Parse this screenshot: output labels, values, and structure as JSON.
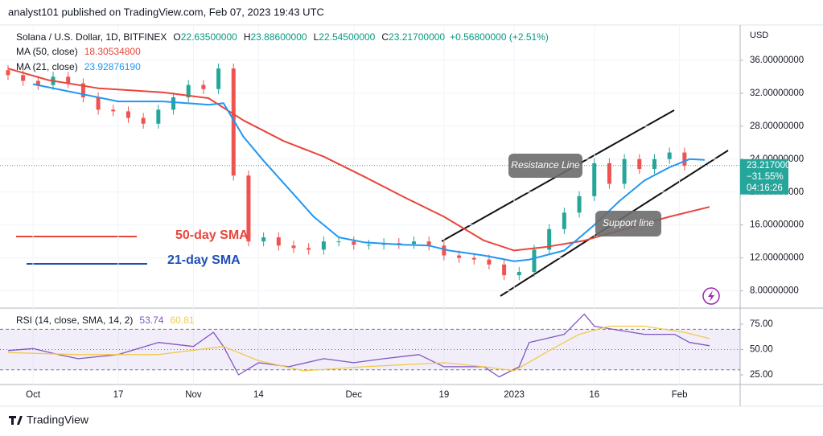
{
  "header": {
    "published": "analyst101 published on TradingView.com, Feb 07, 2023 19:43 UTC"
  },
  "chart_data": {
    "type": "candlestick",
    "symbol": "Solana / U.S. Dollar, 1D, BITFINEX",
    "ohlc": [
      {
        "key": "O",
        "text": "22.63500000"
      },
      {
        "key": "H",
        "text": "23.88600000"
      },
      {
        "key": "L",
        "text": "22.54500000"
      },
      {
        "key": "C",
        "text": "23.21700000"
      }
    ],
    "change": "+0.56800000 (+2.51%)",
    "currency": "USD",
    "x": [
      0,
      3,
      6,
      9,
      12,
      15,
      18,
      21,
      24,
      27,
      30,
      33,
      36,
      39,
      42,
      45,
      48,
      51,
      54,
      57,
      60,
      63,
      66,
      69,
      72,
      75,
      78,
      81,
      84,
      87,
      90,
      93,
      96,
      99,
      102,
      105,
      108,
      111,
      114,
      117,
      120,
      123,
      126,
      129,
      132,
      135
    ],
    "open": [
      34.8,
      34.2,
      33.5,
      33,
      34,
      33.2,
      31.5,
      30,
      29.8,
      29,
      28.3,
      30,
      31.5,
      33,
      32.5,
      35,
      22,
      14,
      14.5,
      13.5,
      13.2,
      13,
      14,
      14,
      13.6,
      13.6,
      13.8,
      13.7,
      14,
      13.5,
      12.3,
      12,
      11.8,
      11.2,
      9.9,
      10.3,
      13,
      15.5,
      17.5,
      19.5,
      23.5,
      21,
      24,
      22.8,
      24,
      24.8
    ],
    "high": [
      35.4,
      34.8,
      34.1,
      34.6,
      34.6,
      33.8,
      32.1,
      30.6,
      30.4,
      29.6,
      30.6,
      32.1,
      33.6,
      33.6,
      35.6,
      35.6,
      22.6,
      15.1,
      15.1,
      14.1,
      13.8,
      14.6,
      14.6,
      14.6,
      14.2,
      14.4,
      14.4,
      14.6,
      14.6,
      14.1,
      12.9,
      12.6,
      12.4,
      11.8,
      10.9,
      13.6,
      16.1,
      18.1,
      20.1,
      24.1,
      24.1,
      24.6,
      24.6,
      24.6,
      25.4,
      25.4
    ],
    "low": [
      33.6,
      32.9,
      32.4,
      32.4,
      32.6,
      30.9,
      29.4,
      29.2,
      28.4,
      27.7,
      27.7,
      29.4,
      30.9,
      31.9,
      31.9,
      21.4,
      13.4,
      13.4,
      12.9,
      12.6,
      12.4,
      12.4,
      13.4,
      13,
      13,
      13,
      13.1,
      13.1,
      12.9,
      11.7,
      11.4,
      11.2,
      10.6,
      9.3,
      9.3,
      9.7,
      12.4,
      14.9,
      16.9,
      18.9,
      20.4,
      20.4,
      22.2,
      22.2,
      23.4,
      22.6
    ],
    "close": [
      34.2,
      33.5,
      33,
      34,
      33.2,
      31.5,
      30,
      29.8,
      29,
      28.3,
      30,
      31.5,
      33,
      32.5,
      35,
      22,
      14,
      14.5,
      13.5,
      13.2,
      13,
      14,
      14,
      13.6,
      13.6,
      13.8,
      13.7,
      14,
      13.5,
      12.3,
      12,
      11.8,
      11.2,
      9.9,
      10.3,
      13,
      15.5,
      17.5,
      19.5,
      23.5,
      21,
      24,
      22.8,
      24,
      24.8,
      23.2
    ],
    "up_color": "#26a69a",
    "down_color": "#ef5350",
    "series": [
      {
        "name": "MA (50, close)",
        "last": "18.30534800",
        "color": "#e8463b",
        "x": [
          0,
          8,
          18,
          31,
          40,
          47,
          55,
          63,
          71,
          79,
          87,
          95,
          101,
          107,
          115,
          123,
          132,
          140
        ],
        "values": [
          35,
          33.6,
          32.6,
          32.1,
          31.4,
          28.7,
          26.2,
          24.3,
          21.9,
          19.4,
          17,
          14.1,
          12.9,
          13.3,
          14.1,
          15.5,
          17,
          18.2
        ]
      },
      {
        "name": "MA (21, close)",
        "last": "23.92876190",
        "color": "#2196f3",
        "x": [
          5,
          22,
          31,
          40,
          43,
          47,
          51,
          56,
          61,
          66,
          71,
          79,
          84,
          88,
          95,
          101,
          104,
          111,
          117,
          122,
          127,
          132,
          136,
          139
        ],
        "values": [
          33.1,
          31,
          31,
          30.6,
          30.8,
          26.7,
          23.8,
          20.4,
          17,
          14.5,
          13.9,
          13.6,
          13.5,
          12.9,
          12.3,
          11.6,
          11.8,
          12.9,
          16,
          18.9,
          21.4,
          23,
          24,
          23.9
        ]
      }
    ],
    "xlim": [
      -1.6,
      146.1
    ],
    "xticks": [
      {
        "value": 5,
        "label": "Oct"
      },
      {
        "value": 22,
        "label": "17"
      },
      {
        "value": 37,
        "label": "Nov"
      },
      {
        "value": 50,
        "label": "14"
      },
      {
        "value": 69,
        "label": "Dec"
      },
      {
        "value": 87,
        "label": "19"
      },
      {
        "value": 101,
        "label": "2023"
      },
      {
        "value": 117,
        "label": "16"
      },
      {
        "value": 134,
        "label": "Feb"
      }
    ],
    "ylim": [
      6.2,
      39.9
    ],
    "yticks": [
      {
        "value": 8,
        "label": "8.00000000"
      },
      {
        "value": 12,
        "label": "12.00000000"
      },
      {
        "value": 16,
        "label": "16.00000000"
      },
      {
        "value": 20,
        "label": "20.00000000"
      },
      {
        "value": 24,
        "label": "24.00000000"
      },
      {
        "value": 28,
        "label": "28.00000000"
      },
      {
        "value": 32,
        "label": "32.00000000"
      },
      {
        "value": 36,
        "label": "36.00000000"
      }
    ],
    "last_price": {
      "value": 23.217,
      "label": "23.21700000"
    },
    "last_change": "−31.55%",
    "countdown": "04:16:26",
    "annotations": [
      "50-day SMA",
      "21-day SMA",
      "Resistance Line",
      "Support line"
    ],
    "rsi": {
      "title": "RSI (14, close, SMA, 14, 2)",
      "ylim": [
        15.5,
        88.5
      ],
      "yticks": [
        {
          "value": 25,
          "label": "25.00"
        },
        {
          "value": 50,
          "label": "50.00"
        },
        {
          "value": 75,
          "label": "75.00"
        }
      ],
      "levels": [
        70,
        50,
        30
      ],
      "series": [
        {
          "name": "RSI",
          "last": "53.74",
          "color": "#7e57c2",
          "x": [
            0,
            5,
            10,
            14,
            22,
            30,
            37,
            41,
            43,
            46,
            50,
            56,
            63,
            69,
            75,
            82,
            87,
            95,
            98,
            102,
            104,
            111,
            115,
            117,
            122,
            127,
            133,
            136,
            140
          ],
          "values": [
            49,
            51,
            45,
            41,
            45,
            57,
            53,
            67,
            53,
            25,
            37,
            33,
            41,
            37,
            41,
            45,
            33,
            33,
            23,
            33,
            57,
            65,
            85,
            73,
            69,
            65,
            65,
            57,
            53.74
          ]
        },
        {
          "name": "SMA",
          "last": "60.81",
          "color": "#f2c94c",
          "x": [
            0,
            14,
            30,
            43,
            50,
            59,
            71,
            87,
            95,
            101,
            108,
            114,
            120,
            127,
            135,
            140
          ],
          "values": [
            47,
            45,
            45,
            53,
            39,
            29,
            33,
            37,
            33,
            29,
            49,
            65,
            73,
            73,
            67,
            60.81
          ]
        }
      ]
    }
  },
  "footer": {
    "brand": "TradingView"
  }
}
